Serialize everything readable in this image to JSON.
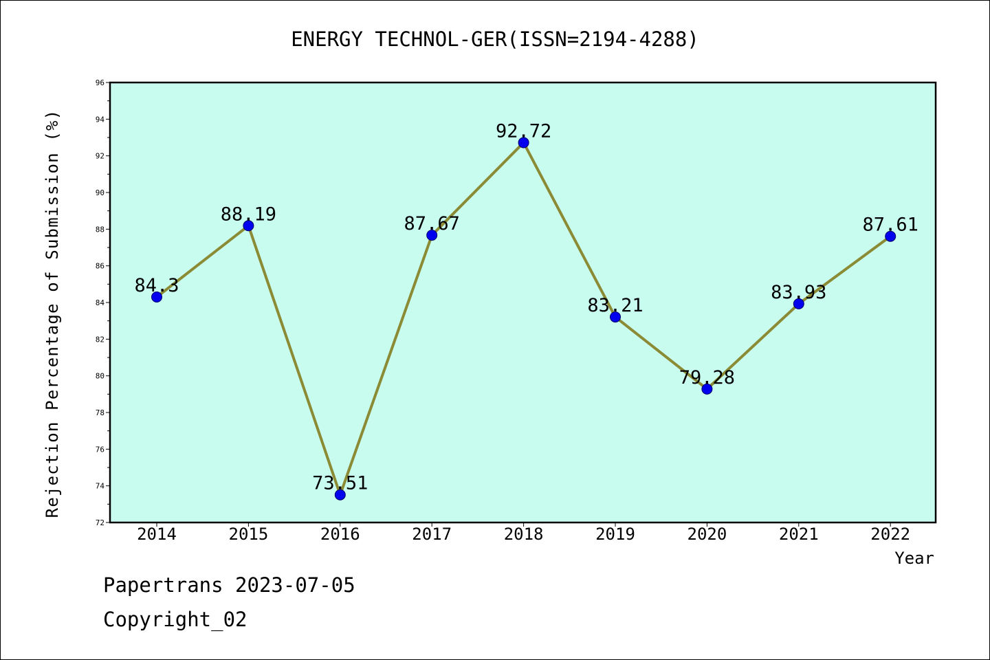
{
  "chart_data": {
    "type": "line",
    "title": "ENERGY TECHNOL-GER(ISSN=2194-4288)",
    "xlabel": "Year",
    "ylabel": "Rejection Percentage of Submission (%)",
    "categories": [
      "2014",
      "2015",
      "2016",
      "2017",
      "2018",
      "2019",
      "2020",
      "2021",
      "2022"
    ],
    "values": [
      84.3,
      88.19,
      73.51,
      87.67,
      92.72,
      83.21,
      79.28,
      83.93,
      87.61
    ],
    "data_labels": [
      "84.3",
      "88.19",
      "73.51",
      "87.67",
      "92.72",
      "83.21",
      "79.28",
      "83.93",
      "87.61"
    ],
    "ylim": [
      72,
      96
    ],
    "yticks": [
      "72",
      "74",
      "76",
      "78",
      "80",
      "82",
      "84",
      "86",
      "88",
      "90",
      "92",
      "94",
      "96"
    ],
    "grid": false,
    "colors": {
      "plot_background": "#c8fcef",
      "line": "#8b8b35",
      "marker": "#0000ee"
    }
  },
  "footer": {
    "line1": "Papertrans 2023-07-05",
    "line2": "Copyright_02"
  }
}
